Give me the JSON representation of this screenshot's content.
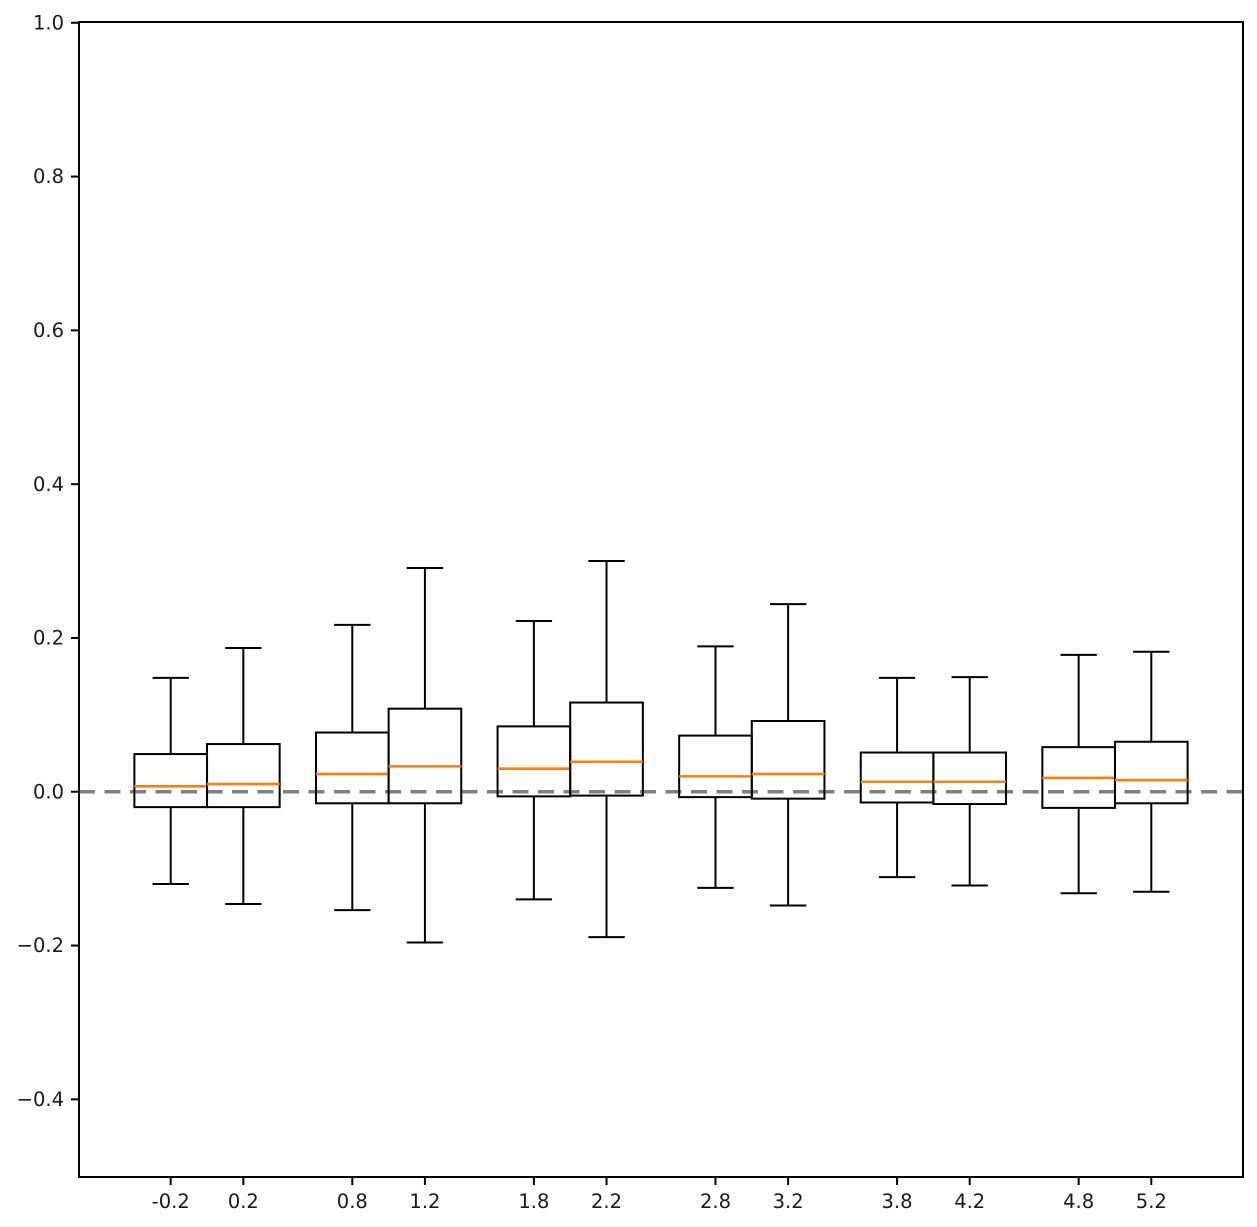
{
  "figure": {
    "background": "#ffffff"
  },
  "chart_data": {
    "type": "boxplot",
    "title": "",
    "xlabel": "",
    "ylabel": "",
    "grid": false,
    "legend": null,
    "x_axis": {
      "lim": [
        -0.705,
        5.705
      ],
      "ticks": [
        {
          "x": -0.2,
          "label": "-0.2"
        },
        {
          "x": 0.2,
          "label": "0.2"
        },
        {
          "x": 0.8,
          "label": "0.8"
        },
        {
          "x": 1.2,
          "label": "1.2"
        },
        {
          "x": 1.8,
          "label": "1.8"
        },
        {
          "x": 2.2,
          "label": "2.2"
        },
        {
          "x": 2.8,
          "label": "2.8"
        },
        {
          "x": 3.2,
          "label": "3.2"
        },
        {
          "x": 3.8,
          "label": "3.8"
        },
        {
          "x": 4.2,
          "label": "4.2"
        },
        {
          "x": 4.8,
          "label": "4.8"
        },
        {
          "x": 5.2,
          "label": "5.2"
        }
      ]
    },
    "y_axis": {
      "lim": [
        -0.501,
        1.001
      ],
      "ticks": [
        {
          "y": -0.4,
          "label": "−0.4"
        },
        {
          "y": -0.2,
          "label": "−0.2"
        },
        {
          "y": 0.0,
          "label": "0.0"
        },
        {
          "y": 0.2,
          "label": "0.2"
        },
        {
          "y": 0.4,
          "label": "0.4"
        },
        {
          "y": 0.6,
          "label": "0.6"
        },
        {
          "y": 0.8,
          "label": "0.8"
        },
        {
          "y": 1.0,
          "label": "1.0"
        }
      ]
    },
    "reference_line": {
      "y": 0.0,
      "style": "dashed",
      "color": "#808080"
    },
    "box_width": 0.4,
    "cap_width": 0.2,
    "boxes": [
      {
        "x": -0.2,
        "label": "-0.2",
        "whisker_low": -0.12,
        "q1": -0.02,
        "median": 0.007,
        "q3": 0.049,
        "whisker_high": 0.148
      },
      {
        "x": 0.2,
        "label": "0.2",
        "whisker_low": -0.146,
        "q1": -0.02,
        "median": 0.01,
        "q3": 0.062,
        "whisker_high": 0.187
      },
      {
        "x": 0.8,
        "label": "0.8",
        "whisker_low": -0.154,
        "q1": -0.015,
        "median": 0.023,
        "q3": 0.077,
        "whisker_high": 0.217
      },
      {
        "x": 1.2,
        "label": "1.2",
        "whisker_low": -0.196,
        "q1": -0.015,
        "median": 0.033,
        "q3": 0.108,
        "whisker_high": 0.291
      },
      {
        "x": 1.8,
        "label": "1.8",
        "whisker_low": -0.14,
        "q1": -0.006,
        "median": 0.03,
        "q3": 0.085,
        "whisker_high": 0.222
      },
      {
        "x": 2.2,
        "label": "2.2",
        "whisker_low": -0.189,
        "q1": -0.005,
        "median": 0.039,
        "q3": 0.116,
        "whisker_high": 0.3
      },
      {
        "x": 2.8,
        "label": "2.8",
        "whisker_low": -0.125,
        "q1": -0.007,
        "median": 0.02,
        "q3": 0.073,
        "whisker_high": 0.189
      },
      {
        "x": 3.2,
        "label": "3.2",
        "whisker_low": -0.148,
        "q1": -0.009,
        "median": 0.023,
        "q3": 0.092,
        "whisker_high": 0.244
      },
      {
        "x": 3.8,
        "label": "3.8",
        "whisker_low": -0.111,
        "q1": -0.014,
        "median": 0.013,
        "q3": 0.051,
        "whisker_high": 0.148
      },
      {
        "x": 4.2,
        "label": "4.2",
        "whisker_low": -0.122,
        "q1": -0.016,
        "median": 0.013,
        "q3": 0.051,
        "whisker_high": 0.149
      },
      {
        "x": 4.8,
        "label": "4.8",
        "whisker_low": -0.132,
        "q1": -0.021,
        "median": 0.018,
        "q3": 0.058,
        "whisker_high": 0.178
      },
      {
        "x": 5.2,
        "label": "5.2",
        "whisker_low": -0.13,
        "q1": -0.015,
        "median": 0.015,
        "q3": 0.065,
        "whisker_high": 0.182
      }
    ],
    "colors": {
      "box_edge": "#000000",
      "median": "#ff7f0e",
      "spine": "#000000",
      "tick_text": "#1a1a1a",
      "background": "#ffffff"
    }
  }
}
